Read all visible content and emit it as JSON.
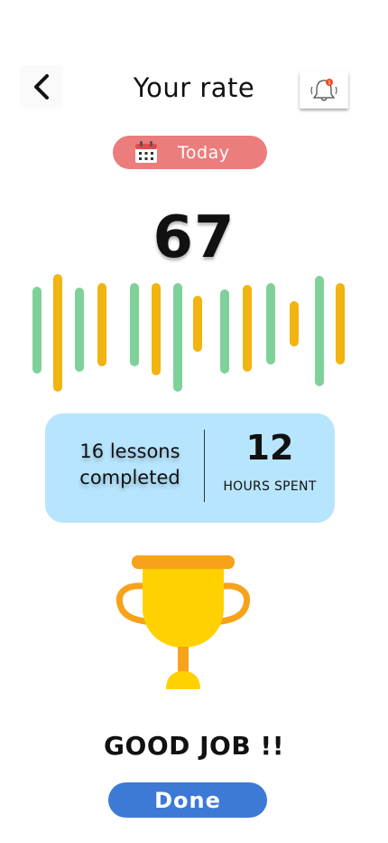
{
  "header": {
    "title": "Your rate",
    "notification_count": "1"
  },
  "date_filter": {
    "label": "Today"
  },
  "score": "67",
  "stats": {
    "lessons_text": "16 lessons completed",
    "hours_value": "12",
    "hours_label": "HOURS SPENT"
  },
  "message": "GOOD JOB !!",
  "done_label": "Done",
  "colors": {
    "green": "#7fd19a",
    "yellow": "#f2b411",
    "pill": "#ec7d7d",
    "card": "#b7e5fe",
    "done": "#3d7ad6"
  }
}
